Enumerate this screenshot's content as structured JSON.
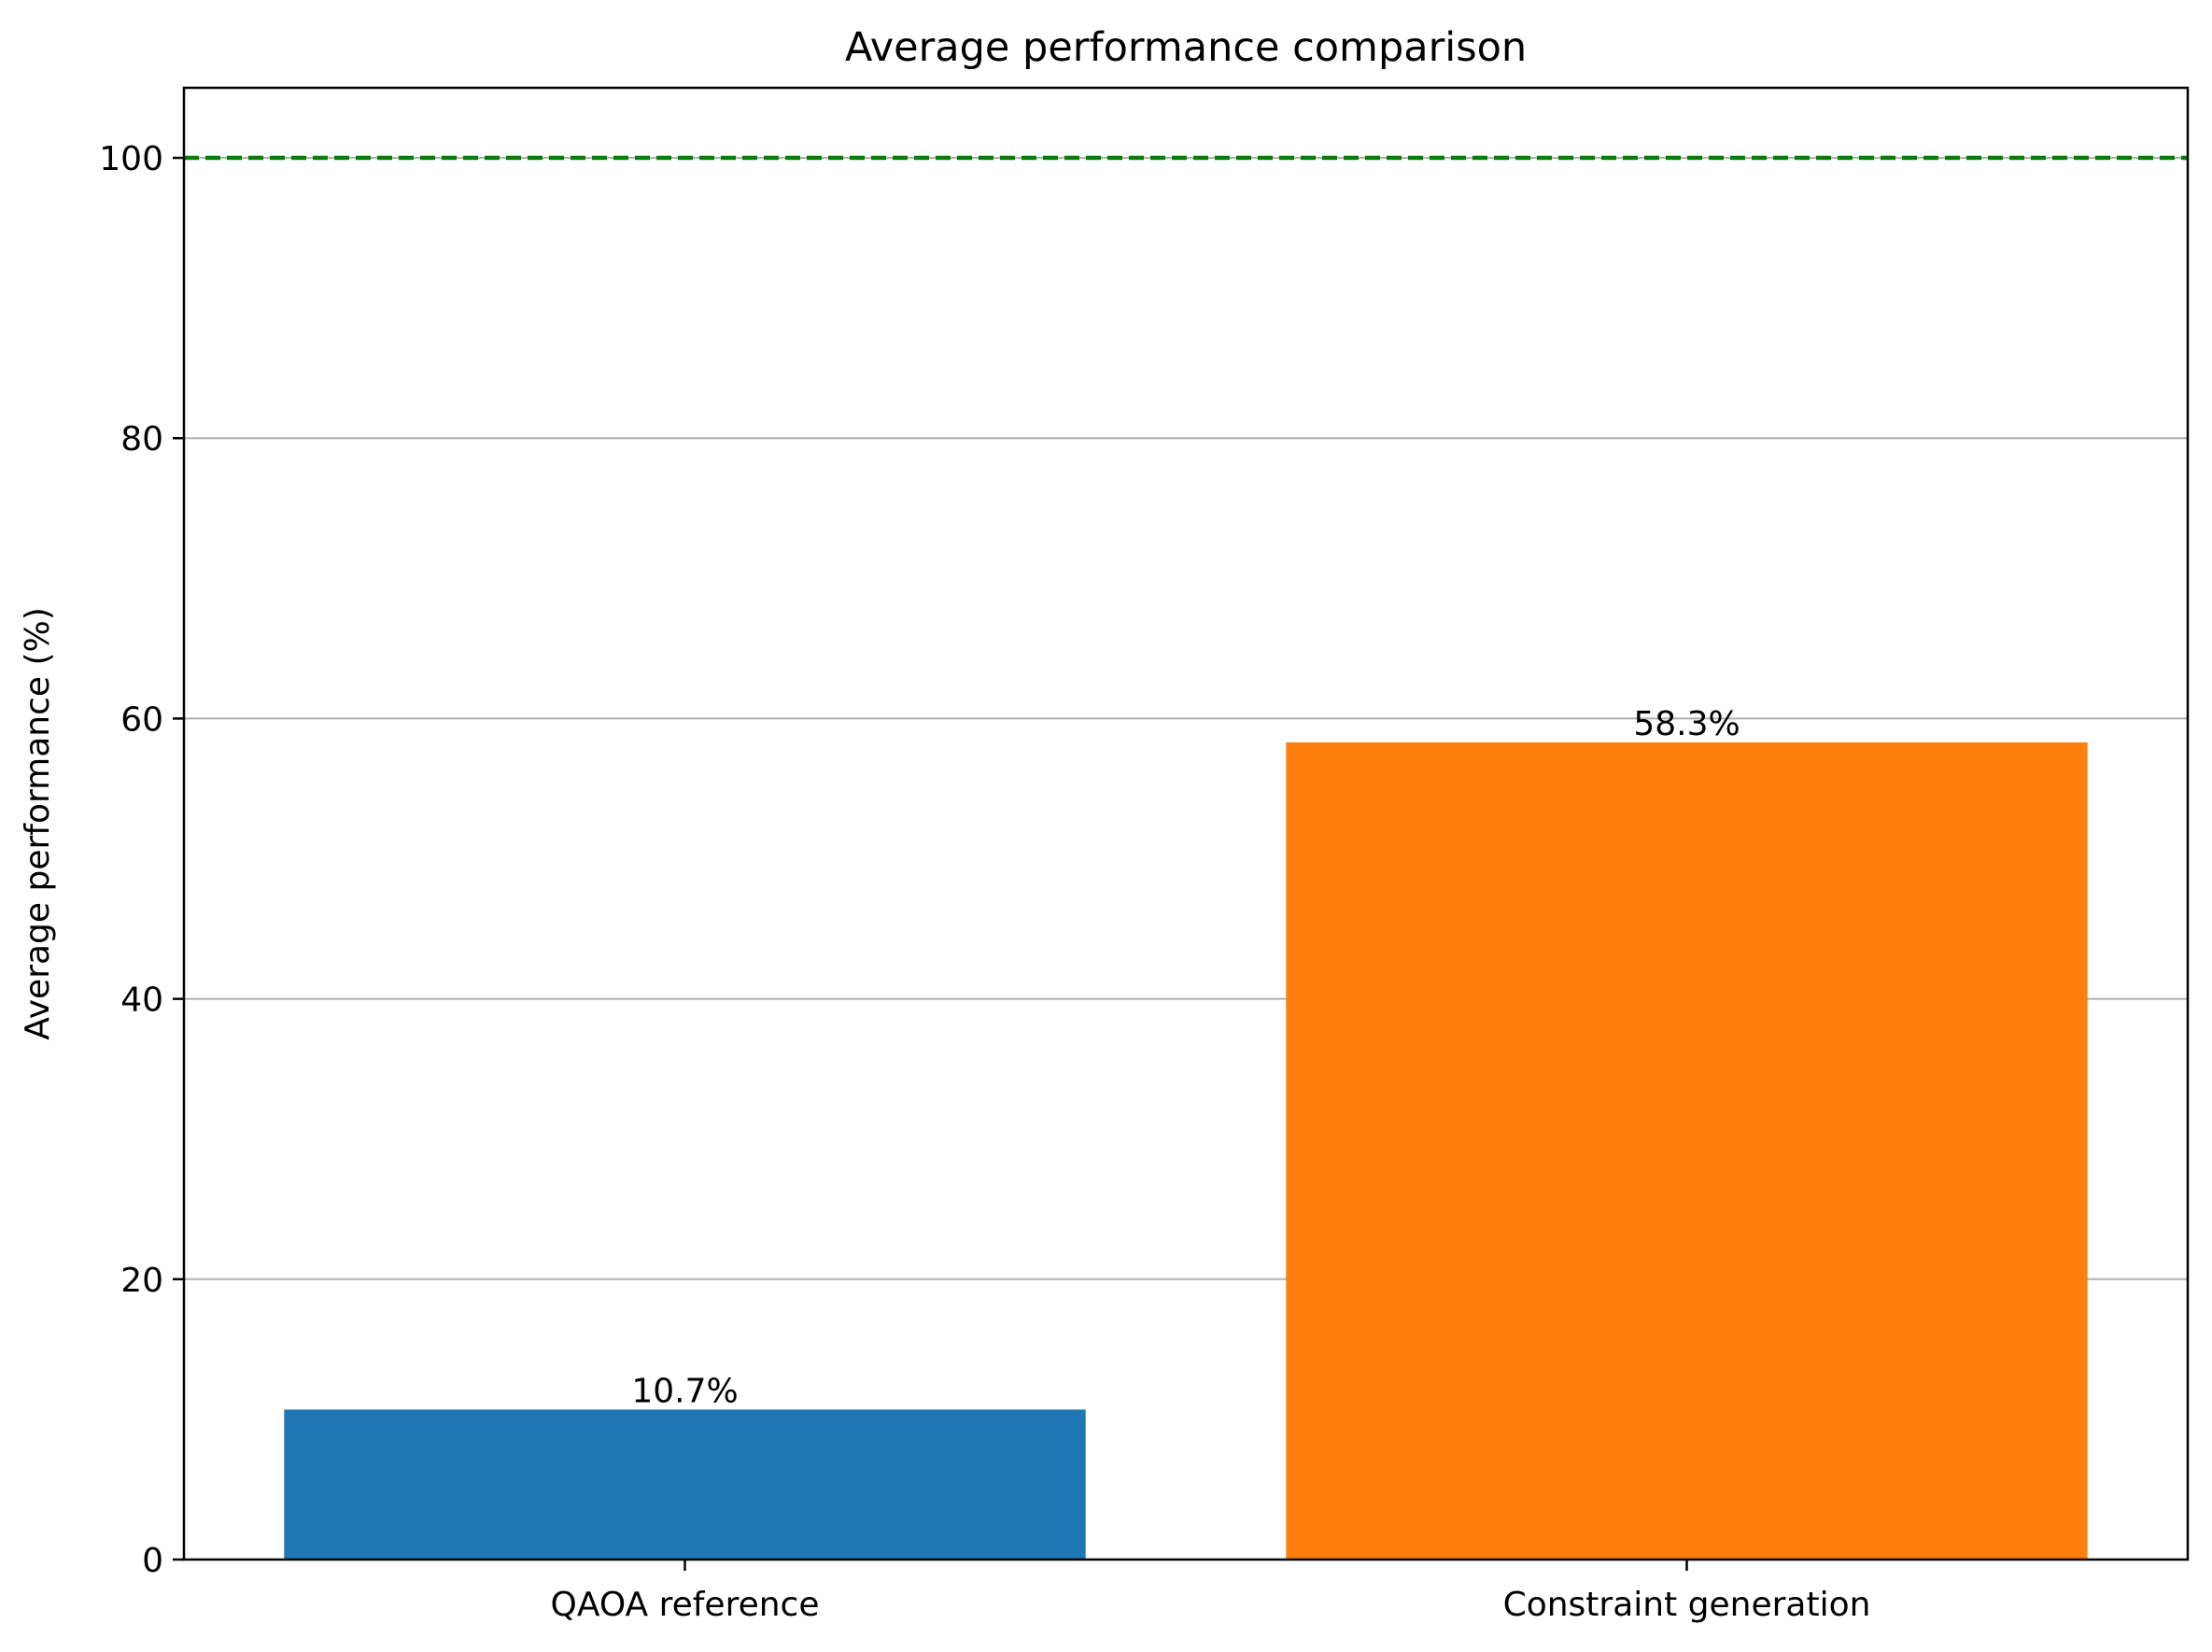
{
  "chart_data": {
    "type": "bar",
    "title": "Average performance comparison",
    "xlabel": "",
    "ylabel": "Average performance (%)",
    "categories": [
      "QAOA reference",
      "Constraint generation"
    ],
    "values": [
      10.7,
      58.3
    ],
    "data_labels": [
      "10.7%",
      "58.3%"
    ],
    "colors": [
      "#1f77b4",
      "#ff7f0e"
    ],
    "ylim": [
      0,
      105
    ],
    "yticks": [
      0,
      20,
      40,
      60,
      80,
      100
    ],
    "ytick_labels": [
      "0",
      "20",
      "40",
      "60",
      "80",
      "100"
    ],
    "grid": "horizontal",
    "grid_color": "#b0b0b0",
    "reference_line": {
      "y": 100,
      "style": "dashed",
      "color": "#008000"
    }
  }
}
